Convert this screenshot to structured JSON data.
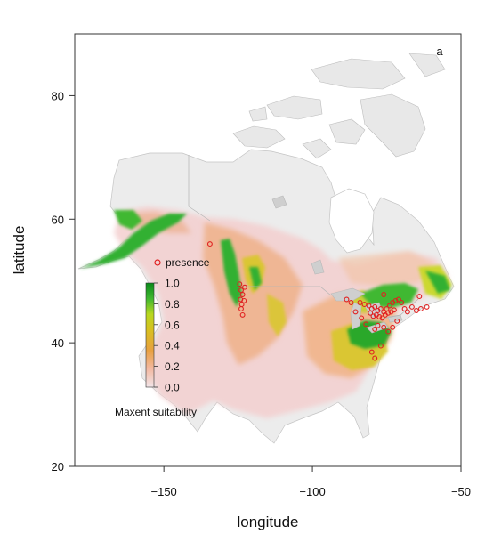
{
  "chart_data": {
    "type": "map",
    "panel_label": "a",
    "xlabel": "longitude",
    "ylabel": "latitude",
    "xlim": [
      -180,
      -50
    ],
    "ylim": [
      20,
      90
    ],
    "x_ticks": [
      -150,
      -100,
      -50
    ],
    "x_tick_labels": [
      "−150",
      "−100",
      "−50"
    ],
    "y_ticks": [
      20,
      40,
      60,
      80
    ],
    "y_tick_labels": [
      "20",
      "40",
      "60",
      "80"
    ],
    "colorbar": {
      "title": "Maxent suitability",
      "range": [
        0,
        1
      ],
      "ticks": [
        0.0,
        0.2,
        0.4,
        0.6,
        0.8,
        1.0
      ],
      "tick_labels": [
        "0.0",
        "0.2",
        "0.4",
        "0.6",
        "0.8",
        "1.0"
      ],
      "colors": [
        "#f2e4e8",
        "#f3b8a0",
        "#e8a040",
        "#d8c020",
        "#b8d820",
        "#40b830",
        "#0a8a1a"
      ]
    },
    "legend": {
      "label": "presence",
      "marker": "open-circle",
      "color": "#e02020"
    },
    "presence_points": [
      {
        "x": -124.0,
        "y": 48.5
      },
      {
        "x": -123.5,
        "y": 47.8
      },
      {
        "x": -124.2,
        "y": 47.0
      },
      {
        "x": -123.8,
        "y": 46.2
      },
      {
        "x": -124.0,
        "y": 45.5
      },
      {
        "x": -123.5,
        "y": 44.5
      },
      {
        "x": -122.8,
        "y": 49.0
      },
      {
        "x": -124.5,
        "y": 49.5
      },
      {
        "x": -123.0,
        "y": 46.8
      },
      {
        "x": -134.5,
        "y": 56.0
      },
      {
        "x": -84.0,
        "y": 46.5
      },
      {
        "x": -82.5,
        "y": 46.2
      },
      {
        "x": -81.0,
        "y": 46.0
      },
      {
        "x": -80.0,
        "y": 45.5
      },
      {
        "x": -79.0,
        "y": 45.8
      },
      {
        "x": -78.0,
        "y": 45.2
      },
      {
        "x": -77.0,
        "y": 45.5
      },
      {
        "x": -76.0,
        "y": 45.0
      },
      {
        "x": -75.0,
        "y": 45.5
      },
      {
        "x": -74.0,
        "y": 46.0
      },
      {
        "x": -73.0,
        "y": 46.5
      },
      {
        "x": -72.0,
        "y": 46.8
      },
      {
        "x": -71.0,
        "y": 47.0
      },
      {
        "x": -80.5,
        "y": 44.8
      },
      {
        "x": -79.5,
        "y": 44.3
      },
      {
        "x": -78.5,
        "y": 44.5
      },
      {
        "x": -77.5,
        "y": 44.2
      },
      {
        "x": -76.5,
        "y": 44.0
      },
      {
        "x": -75.5,
        "y": 44.5
      },
      {
        "x": -74.5,
        "y": 44.8
      },
      {
        "x": -73.5,
        "y": 45.0
      },
      {
        "x": -72.5,
        "y": 45.3
      },
      {
        "x": -70.0,
        "y": 46.5
      },
      {
        "x": -69.0,
        "y": 45.5
      },
      {
        "x": -68.0,
        "y": 45.0
      },
      {
        "x": -66.5,
        "y": 45.8
      },
      {
        "x": -65.0,
        "y": 45.2
      },
      {
        "x": -63.5,
        "y": 45.5
      },
      {
        "x": -61.5,
        "y": 45.8
      },
      {
        "x": -64.0,
        "y": 47.5
      },
      {
        "x": -71.5,
        "y": 43.5
      },
      {
        "x": -73.0,
        "y": 42.5
      },
      {
        "x": -74.5,
        "y": 41.8
      },
      {
        "x": -76.0,
        "y": 42.5
      },
      {
        "x": -78.0,
        "y": 42.8
      },
      {
        "x": -79.0,
        "y": 42.2
      },
      {
        "x": -77.0,
        "y": 39.5
      },
      {
        "x": -80.0,
        "y": 38.5
      },
      {
        "x": -79.0,
        "y": 37.5
      },
      {
        "x": -85.5,
        "y": 45.0
      },
      {
        "x": -87.0,
        "y": 46.5
      },
      {
        "x": -88.5,
        "y": 47.0
      },
      {
        "x": -83.5,
        "y": 44.0
      },
      {
        "x": -82.0,
        "y": 43.0
      },
      {
        "x": -76.0,
        "y": 47.8
      }
    ]
  }
}
